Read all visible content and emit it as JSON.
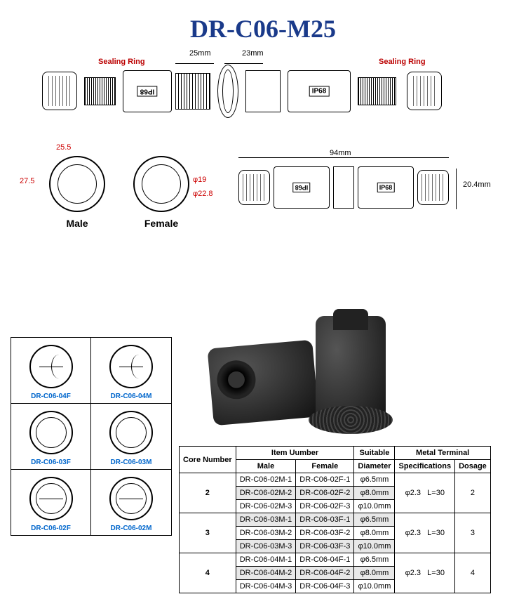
{
  "title": "DR-C06-M25",
  "colors": {
    "title": "#1a3a8a",
    "seal_label": "#b00000",
    "variant_label": "#0066cc",
    "alt_row": "#e8e8e8",
    "dim_red": "#cc0000"
  },
  "exploded": {
    "sealing_ring_left": "Sealing Ring",
    "sealing_ring_right": "Sealing Ring",
    "dim_25": "25mm",
    "dim_23": "23mm",
    "ip68": "IP68"
  },
  "faces": {
    "male_label": "Male",
    "female_label": "Female",
    "dim_25_5": "25.5",
    "dim_27_5": "27.5",
    "dim_phi19": "φ19",
    "dim_phi22_8": "φ22.8"
  },
  "assembled": {
    "dim_94": "94mm",
    "dim_20_4": "20.4mm"
  },
  "variants": [
    {
      "left_label": "DR-C06-04F",
      "right_label": "DR-C06-04M",
      "pins": 4
    },
    {
      "left_label": "DR-C06-03F",
      "right_label": "DR-C06-03M",
      "pins": 3
    },
    {
      "left_label": "DR-C06-02F",
      "right_label": "DR-C06-02M",
      "pins": 2
    }
  ],
  "spec_table": {
    "headers": {
      "core_number": "Core Number",
      "item_number": "Item Uumber",
      "male": "Male",
      "female": "Female",
      "suitable": "Suitable",
      "diameter": "Diameter",
      "metal_terminal": "Metal Terminal",
      "specifications": "Specifications",
      "dosage": "Dosage"
    },
    "groups": [
      {
        "core": "2",
        "spec": "φ2.3   L=30",
        "dosage": "2",
        "rows": [
          {
            "male": "DR-C06-02M-1",
            "female": "DR-C06-02F-1",
            "dia": "φ6.5mm",
            "alt": false
          },
          {
            "male": "DR-C06-02M-2",
            "female": "DR-C06-02F-2",
            "dia": "φ8.0mm",
            "alt": true
          },
          {
            "male": "DR-C06-02M-3",
            "female": "DR-C06-02F-3",
            "dia": "φ10.0mm",
            "alt": false
          }
        ]
      },
      {
        "core": "3",
        "spec": "φ2.3   L=30",
        "dosage": "3",
        "rows": [
          {
            "male": "DR-C06-03M-1",
            "female": "DR-C06-03F-1",
            "dia": "φ6.5mm",
            "alt": true
          },
          {
            "male": "DR-C06-03M-2",
            "female": "DR-C06-03F-2",
            "dia": "φ8.0mm",
            "alt": false
          },
          {
            "male": "DR-C06-03M-3",
            "female": "DR-C06-03F-3",
            "dia": "φ10.0mm",
            "alt": true
          }
        ]
      },
      {
        "core": "4",
        "spec": "φ2.3   L=30",
        "dosage": "4",
        "rows": [
          {
            "male": "DR-C06-04M-1",
            "female": "DR-C06-04F-1",
            "dia": "φ6.5mm",
            "alt": false
          },
          {
            "male": "DR-C06-04M-2",
            "female": "DR-C06-04F-2",
            "dia": "φ8.0mm",
            "alt": true
          },
          {
            "male": "DR-C06-04M-3",
            "female": "DR-C06-04F-3",
            "dia": "φ10.0mm",
            "alt": false
          }
        ]
      }
    ]
  }
}
